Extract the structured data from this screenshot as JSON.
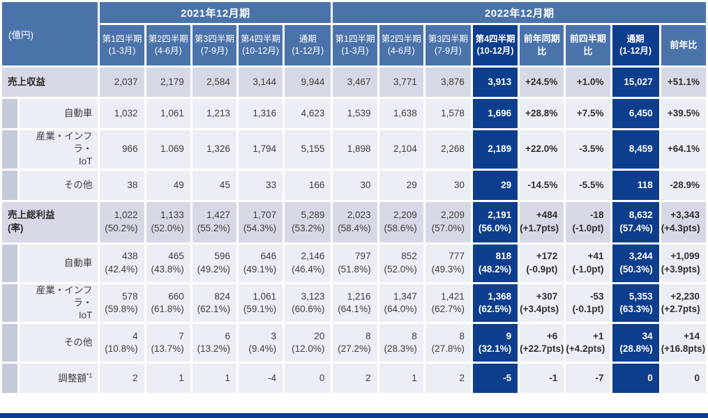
{
  "unit_label": "(億円)",
  "colors": {
    "header_blue": "#4a73aa",
    "highlight_navy": "#0d3e8d",
    "parent_row_bg": "#d6d9e5",
    "child_row_bg": "#eceef5",
    "indent_bg": "#c6cbdb",
    "value_text": "#3d3d3d"
  },
  "header": {
    "groups": [
      {
        "label": "2021年12月期",
        "span": 5
      },
      {
        "label": "2022年12月期",
        "span": 8
      }
    ],
    "columns": [
      {
        "l1": "第1四半期",
        "l2": "(1-3月)"
      },
      {
        "l1": "第2四半期",
        "l2": "(4-6月)"
      },
      {
        "l1": "第3四半期",
        "l2": "(7-9月)"
      },
      {
        "l1": "第4四半期",
        "l2": "(10-12月)"
      },
      {
        "l1": "通期",
        "l2": "(1-12月)"
      },
      {
        "l1": "第1四半期",
        "l2": "(1-3月)"
      },
      {
        "l1": "第2四半期",
        "l2": "(4-6月)"
      },
      {
        "l1": "第3四半期",
        "l2": "(7-9月)"
      },
      {
        "l1": "第4四半期",
        "l2": "(10-12月)",
        "highlight": true
      },
      {
        "l1": "前年同期比",
        "bold": true
      },
      {
        "l1": "前四半期比",
        "bold": true
      },
      {
        "l1": "通期",
        "l2": "(1-12月)",
        "highlight": true
      },
      {
        "l1": "前年比",
        "bold": true
      }
    ]
  },
  "navy_columns": [
    8,
    11
  ],
  "comparison_columns": [
    9,
    10,
    12
  ],
  "rows": [
    {
      "type": "parent",
      "label": [
        "売上収益"
      ],
      "cells": [
        {
          "v": "2,037"
        },
        {
          "v": "2,179"
        },
        {
          "v": "2,584"
        },
        {
          "v": "3,144"
        },
        {
          "v": "9,944"
        },
        {
          "v": "3,467"
        },
        {
          "v": "3,771"
        },
        {
          "v": "3,876"
        },
        {
          "v": "3,913"
        },
        {
          "v": "+24.5%"
        },
        {
          "v": "+1.0%"
        },
        {
          "v": "15,027"
        },
        {
          "v": "+51.1%"
        }
      ]
    },
    {
      "type": "child",
      "label": [
        "自動車"
      ],
      "cells": [
        {
          "v": "1,032"
        },
        {
          "v": "1,061"
        },
        {
          "v": "1,213"
        },
        {
          "v": "1,316"
        },
        {
          "v": "4,623"
        },
        {
          "v": "1,539"
        },
        {
          "v": "1,638"
        },
        {
          "v": "1,578"
        },
        {
          "v": "1,696"
        },
        {
          "v": "+28.8%"
        },
        {
          "v": "+7.5%"
        },
        {
          "v": "6,450"
        },
        {
          "v": "+39.5%"
        }
      ]
    },
    {
      "type": "child",
      "label": [
        "産業・インフラ・",
        "IoT"
      ],
      "cells": [
        {
          "v": "966"
        },
        {
          "v": "1.069"
        },
        {
          "v": "1,326"
        },
        {
          "v": "1,794"
        },
        {
          "v": "5,155"
        },
        {
          "v": "1,898"
        },
        {
          "v": "2,104"
        },
        {
          "v": "2,268"
        },
        {
          "v": "2,189"
        },
        {
          "v": "+22.0%"
        },
        {
          "v": "-3.5%"
        },
        {
          "v": "8,459"
        },
        {
          "v": "+64.1%"
        }
      ]
    },
    {
      "type": "child",
      "label": [
        "その他"
      ],
      "cells": [
        {
          "v": "38"
        },
        {
          "v": "49"
        },
        {
          "v": "45"
        },
        {
          "v": "33"
        },
        {
          "v": "166"
        },
        {
          "v": "30"
        },
        {
          "v": "29"
        },
        {
          "v": "30"
        },
        {
          "v": "29"
        },
        {
          "v": "-14.5%"
        },
        {
          "v": "-5.5%"
        },
        {
          "v": "118"
        },
        {
          "v": "-28.9%"
        }
      ]
    },
    {
      "type": "parent",
      "label": [
        "売上総利益",
        "(率)"
      ],
      "cells": [
        {
          "v": "1,022",
          "p": "(50.2%)"
        },
        {
          "v": "1,133",
          "p": "(52.0%)"
        },
        {
          "v": "1,427",
          "p": "(55.2%)"
        },
        {
          "v": "1,707",
          "p": "(54.3%)"
        },
        {
          "v": "5,289",
          "p": "(53.2%)"
        },
        {
          "v": "2,023",
          "p": "(58.4%)"
        },
        {
          "v": "2,209",
          "p": "(58.6%)"
        },
        {
          "v": "2,209",
          "p": "(57.0%)"
        },
        {
          "v": "2,191",
          "p": "(56.0%)"
        },
        {
          "v": "+484",
          "p": "(+1.7pts)"
        },
        {
          "v": "-18",
          "p": "(-1.0pt)"
        },
        {
          "v": "8,632",
          "p": "(57.4%)"
        },
        {
          "v": "+3,343",
          "p": "(+4.3pts)"
        }
      ]
    },
    {
      "type": "child",
      "label": [
        "自動車"
      ],
      "cells": [
        {
          "v": "438",
          "p": "(42.4%)"
        },
        {
          "v": "465",
          "p": "(43.8%)"
        },
        {
          "v": "596",
          "p": "(49.2%)"
        },
        {
          "v": "646",
          "p": "(49.1%)"
        },
        {
          "v": "2,146",
          "p": "(46.4%)"
        },
        {
          "v": "797",
          "p": "(51.8%)"
        },
        {
          "v": "852",
          "p": "(52.0%)"
        },
        {
          "v": "777",
          "p": "(49.3%)"
        },
        {
          "v": "818",
          "p": "(48.2%)"
        },
        {
          "v": "+172",
          "p": "(-0.9pt)"
        },
        {
          "v": "+41",
          "p": "(-1.0pt)"
        },
        {
          "v": "3,244",
          "p": "(50.3%)"
        },
        {
          "v": "+1,099",
          "p": "(+3.9pts)"
        }
      ]
    },
    {
      "type": "child",
      "label": [
        "産業・インフラ・",
        "IoT"
      ],
      "cells": [
        {
          "v": "578",
          "p": "(59.8%)"
        },
        {
          "v": "660",
          "p": "(61.8%)"
        },
        {
          "v": "824",
          "p": "(62.1%)"
        },
        {
          "v": "1,061",
          "p": "(59.1%)"
        },
        {
          "v": "3,123",
          "p": "(60.6%)"
        },
        {
          "v": "1,216",
          "p": "(64.1%)"
        },
        {
          "v": "1,347",
          "p": "(64.0%)"
        },
        {
          "v": "1,421",
          "p": "(62.7%)"
        },
        {
          "v": "1,368",
          "p": "(62.5%)"
        },
        {
          "v": "+307",
          "p": "(+3.4pts)"
        },
        {
          "v": "-53",
          "p": "(-0.1pt)"
        },
        {
          "v": "5,353",
          "p": "(63.3%)"
        },
        {
          "v": "+2,230",
          "p": "(+2.7pts)"
        }
      ]
    },
    {
      "type": "child",
      "label": [
        "その他"
      ],
      "cells": [
        {
          "v": "4",
          "p": "(10.8%)"
        },
        {
          "v": "7",
          "p": "(13.7%)"
        },
        {
          "v": "6",
          "p": "(13.2%)"
        },
        {
          "v": "3",
          "p": "(9.4%)"
        },
        {
          "v": "20",
          "p": "(12.0%)"
        },
        {
          "v": "8",
          "p": "(27.2%)"
        },
        {
          "v": "8",
          "p": "(28.3%)"
        },
        {
          "v": "8",
          "p": "(27.8%)"
        },
        {
          "v": "9",
          "p": "(32.1%)"
        },
        {
          "v": "+6",
          "p": "(+22.7pts)"
        },
        {
          "v": "+1",
          "p": "(+4.2pts)"
        },
        {
          "v": "34",
          "p": "(28.8%)"
        },
        {
          "v": "+14",
          "p": "(+16.8pts)"
        }
      ]
    },
    {
      "type": "child",
      "label": [
        "調整額"
      ],
      "sup": "*1",
      "cells": [
        {
          "v": "2"
        },
        {
          "v": "1"
        },
        {
          "v": "1"
        },
        {
          "v": "-4"
        },
        {
          "v": "0"
        },
        {
          "v": "2"
        },
        {
          "v": "1"
        },
        {
          "v": "2"
        },
        {
          "v": "-5"
        },
        {
          "v": "-1"
        },
        {
          "v": "-7"
        },
        {
          "v": "0"
        },
        {
          "v": "0"
        }
      ]
    }
  ]
}
